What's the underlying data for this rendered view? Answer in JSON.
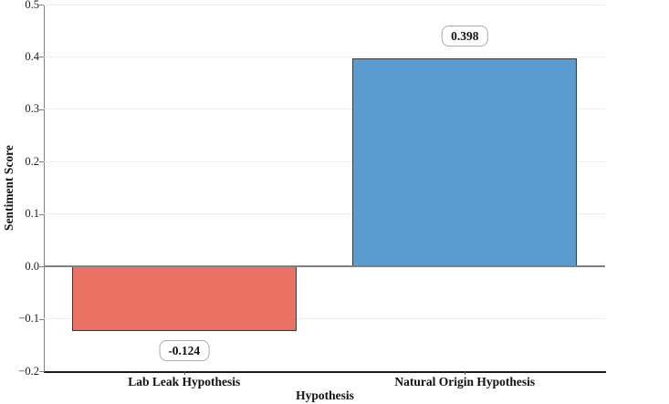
{
  "chart_data": {
    "type": "bar",
    "categories": [
      "Lab Leak Hypothesis",
      "Natural Origin Hypothesis"
    ],
    "values": [
      -0.124,
      0.398
    ],
    "value_labels": [
      "-0.124",
      "0.398"
    ],
    "bar_colors": [
      "#EB7164",
      "#5A9BD0"
    ],
    "bar_edge_color": "#3a3a3a",
    "xlabel": "Hypothesis",
    "ylabel": "Sentiment Score",
    "ylim": [
      -0.2,
      0.5
    ],
    "yticks": [
      {
        "value": 0.5,
        "label": "0.5"
      },
      {
        "value": 0.4,
        "label": "0.4"
      },
      {
        "value": 0.3,
        "label": "0.3"
      },
      {
        "value": 0.2,
        "label": "0.2"
      },
      {
        "value": 0.1,
        "label": "0.1"
      },
      {
        "value": 0.0,
        "label": "0.0"
      },
      {
        "value": -0.1,
        "label": "−0.1"
      },
      {
        "value": -0.2,
        "label": "−0.2"
      }
    ],
    "grid": "horizontal",
    "gridline_color": "#ededed",
    "zero_line_color": "#808080",
    "left_spine_color": "#808080",
    "bottom_spine_color": "#1a1a1a",
    "legend_position": "none"
  }
}
